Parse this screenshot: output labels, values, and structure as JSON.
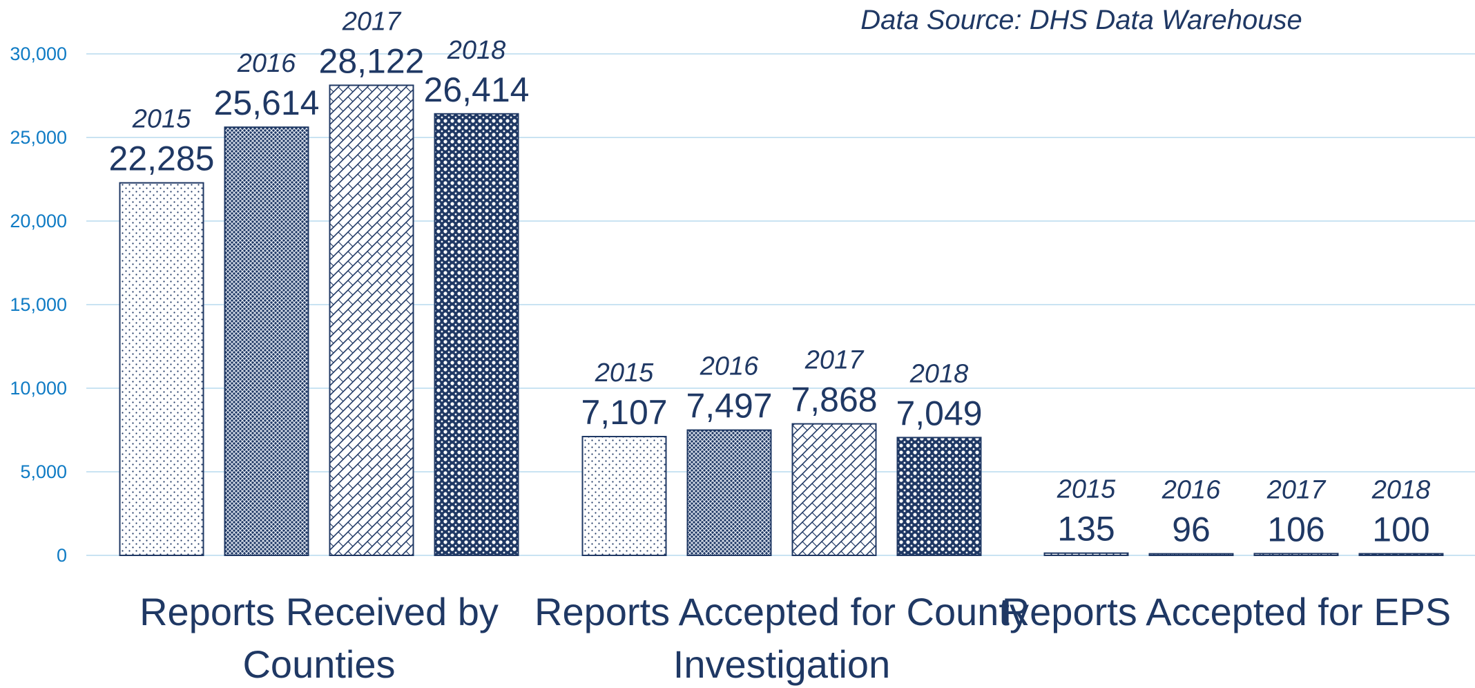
{
  "chart_data": {
    "type": "bar",
    "annotation": "Data Source: DHS Data Warehouse",
    "categories": [
      "Reports Received by Counties",
      "Reports Accepted for County Investigation",
      "Reports Accepted for EPS"
    ],
    "series": [
      {
        "name": "2015",
        "color": "#1f3864",
        "values": [
          22285,
          7107,
          135
        ],
        "value_labels": [
          "22,285",
          "7,107",
          "135"
        ]
      },
      {
        "name": "2016",
        "color": "#1f3864",
        "values": [
          25614,
          7497,
          96
        ],
        "value_labels": [
          "25,614",
          "7,497",
          "96"
        ]
      },
      {
        "name": "2017",
        "color": "#1f3864",
        "values": [
          28122,
          7868,
          106
        ],
        "value_labels": [
          "28,122",
          "7,868",
          "106"
        ]
      },
      {
        "name": "2018",
        "color": "#1f3864",
        "values": [
          26414,
          7049,
          100
        ],
        "value_labels": [
          "26,414",
          "7,049",
          "100"
        ]
      }
    ],
    "ylim": [
      0,
      30000
    ],
    "yticks": [
      0,
      {
        "value": 5000,
        "label": "5,000"
      },
      {
        "value": 10000,
        "label": "10,000"
      },
      {
        "value": 15000,
        "label": "15,000"
      },
      {
        "value": 20000,
        "label": "20,000"
      },
      {
        "value": 25000,
        "label": "25,000"
      },
      {
        "value": 30000,
        "label": "30,000"
      }
    ],
    "grid": true
  }
}
